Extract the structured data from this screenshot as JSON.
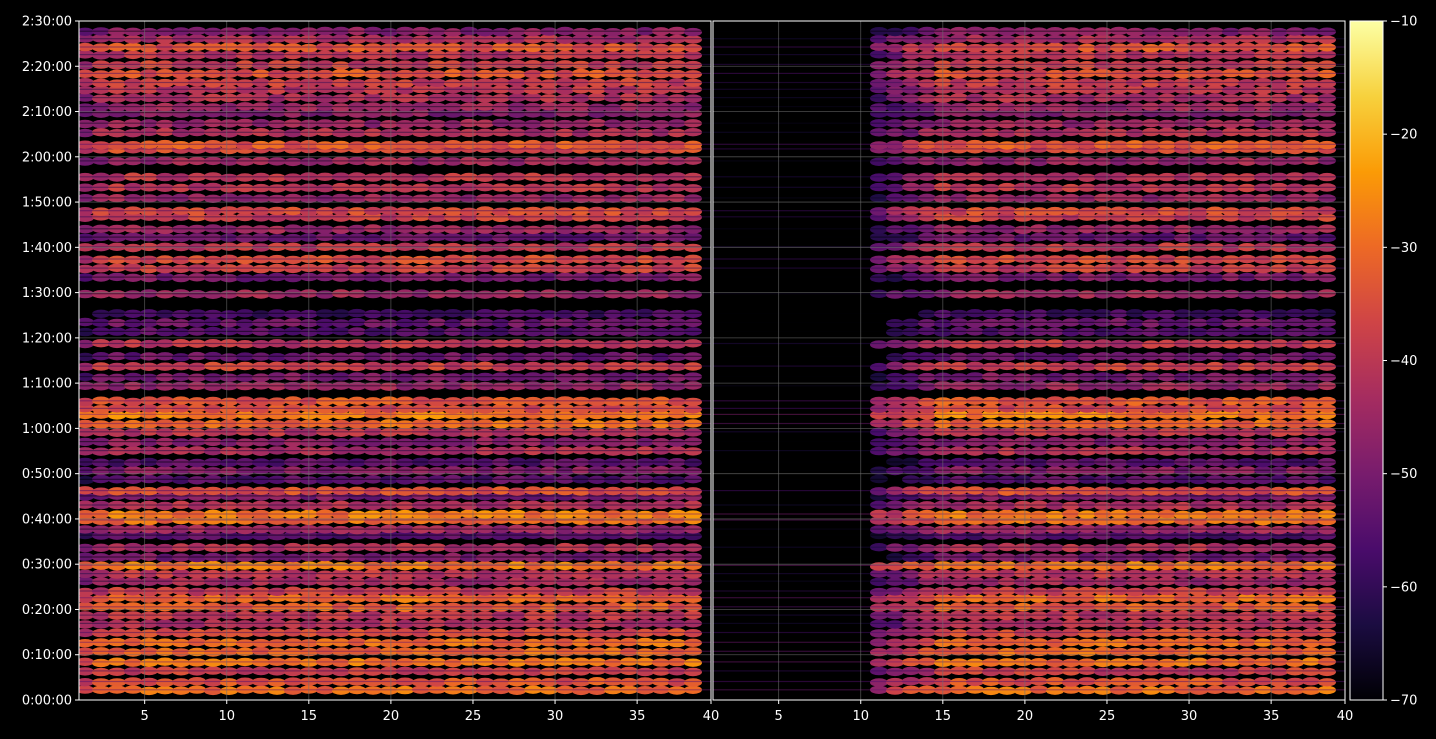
{
  "chart_data": {
    "type": "heatmap",
    "title": "",
    "xlabel": "",
    "ylabel": "",
    "background": "#000000",
    "grid": true,
    "grid_color": "#6e6e6e",
    "colormap": "inferno",
    "colormap_stops": [
      "#000004",
      "#1b0c41",
      "#4a0c6b",
      "#781c6d",
      "#a52c60",
      "#cf4446",
      "#ed6925",
      "#fb9b06",
      "#f7d13d",
      "#fcffa4"
    ],
    "panels": [
      {
        "name": "left",
        "xlim": [
          1,
          39.5
        ],
        "x_ticks": [
          5,
          10,
          15,
          20,
          25,
          30,
          35
        ],
        "x_tick_labels": [
          "5",
          "10",
          "15",
          "20",
          "25",
          "30",
          "35"
        ],
        "x_end_label": "40",
        "empty_x_ranges": []
      },
      {
        "name": "right",
        "xlim": [
          1,
          39.5
        ],
        "x_ticks": [
          5,
          10,
          15,
          20,
          25,
          30,
          35
        ],
        "x_tick_labels": [
          "5",
          "10",
          "15",
          "20",
          "25",
          "30",
          "35"
        ],
        "x_end_label": "40",
        "empty_x_ranges": [
          [
            1,
            11
          ]
        ]
      }
    ],
    "y_axis": {
      "unit": "time (h:mm:ss)",
      "range_seconds": [
        0,
        9000
      ],
      "ticks_seconds": [
        0,
        600,
        1200,
        1800,
        2400,
        3000,
        3600,
        4200,
        4800,
        5400,
        6000,
        6600,
        7200,
        7800,
        8400,
        9000
      ],
      "tick_labels": [
        "0:00:00",
        "0:10:00",
        "0:20:00",
        "0:30:00",
        "0:40:00",
        "0:50:00",
        "1:00:00",
        "1:10:00",
        "1:20:00",
        "1:30:00",
        "1:40:00",
        "1:50:00",
        "2:00:00",
        "2:10:00",
        "2:20:00",
        "2:30:00"
      ]
    },
    "colorbar": {
      "range": [
        -70,
        -10
      ],
      "ticks": [
        -10,
        -20,
        -30,
        -40,
        -50,
        -60,
        -70
      ],
      "tick_labels": [
        "−10",
        "−20",
        "−30",
        "−40",
        "−50",
        "−60",
        "−70"
      ]
    },
    "bands_seconds_value": [
      [
        130,
        -30
      ],
      [
        240,
        -34
      ],
      [
        380,
        -38
      ],
      [
        500,
        -29
      ],
      [
        640,
        -31
      ],
      [
        760,
        -30
      ],
      [
        890,
        -36
      ],
      [
        1010,
        -42
      ],
      [
        1120,
        -40
      ],
      [
        1230,
        -32
      ],
      [
        1350,
        -30
      ],
      [
        1440,
        -38
      ],
      [
        1570,
        -44
      ],
      [
        1670,
        -40
      ],
      [
        1780,
        -28
      ],
      [
        1890,
        -50
      ],
      [
        2020,
        -42
      ],
      [
        2180,
        -55
      ],
      [
        2260,
        -45
      ],
      [
        2380,
        -30
      ],
      [
        2460,
        -28
      ],
      [
        2580,
        -42
      ],
      [
        2700,
        -50
      ],
      [
        2770,
        -35
      ],
      [
        2920,
        -55
      ],
      [
        3040,
        -48
      ],
      [
        3150,
        -55
      ],
      [
        3300,
        -42
      ],
      [
        3420,
        -48
      ],
      [
        3550,
        -40
      ],
      [
        3660,
        -30
      ],
      [
        3780,
        -27
      ],
      [
        3860,
        -35
      ],
      [
        3960,
        -33
      ],
      [
        4160,
        -45
      ],
      [
        4280,
        -50
      ],
      [
        4420,
        -38
      ],
      [
        4550,
        -52
      ],
      [
        4720,
        -40
      ],
      [
        4880,
        -55
      ],
      [
        5000,
        -52
      ],
      [
        5120,
        -58
      ],
      [
        5380,
        -45
      ],
      [
        5600,
        -50
      ],
      [
        5720,
        -38
      ],
      [
        5840,
        -36
      ],
      [
        6000,
        -40
      ],
      [
        6130,
        -52
      ],
      [
        6240,
        -45
      ],
      [
        6400,
        -38
      ],
      [
        6480,
        -36
      ],
      [
        6650,
        -45
      ],
      [
        6790,
        -40
      ],
      [
        6930,
        -40
      ],
      [
        7140,
        -45
      ],
      [
        7300,
        -36
      ],
      [
        7360,
        -33
      ],
      [
        7520,
        -42
      ],
      [
        7640,
        -45
      ],
      [
        7780,
        -48
      ],
      [
        7860,
        -45
      ],
      [
        7980,
        -42
      ],
      [
        8090,
        -40
      ],
      [
        8180,
        -38
      ],
      [
        8300,
        -34
      ],
      [
        8420,
        -38
      ],
      [
        8550,
        -40
      ],
      [
        8650,
        -34
      ],
      [
        8760,
        -42
      ],
      [
        8860,
        -48
      ]
    ]
  }
}
